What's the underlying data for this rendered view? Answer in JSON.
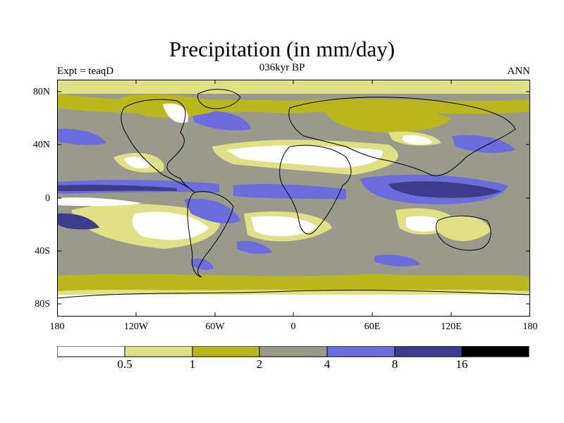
{
  "header": {
    "title": "Precipitation (in mm/day)",
    "subtitle": "036kyr BP",
    "left_label": "Expt = teaqD",
    "right_label": "ANN"
  },
  "axes": {
    "lat_ticks": [
      "80N",
      "40N",
      "0",
      "40S",
      "80S"
    ],
    "lon_ticks": [
      "180",
      "120W",
      "60W",
      "0",
      "60E",
      "120E",
      "180"
    ]
  },
  "colorbar": {
    "colors": [
      "#ffffff",
      "#e0e086",
      "#b8b81e",
      "#9a9a8c",
      "#6c6cdc",
      "#3c3c8a",
      "#000000"
    ],
    "labels": [
      "0.5",
      "1",
      "2",
      "4",
      "8",
      "16"
    ]
  }
}
